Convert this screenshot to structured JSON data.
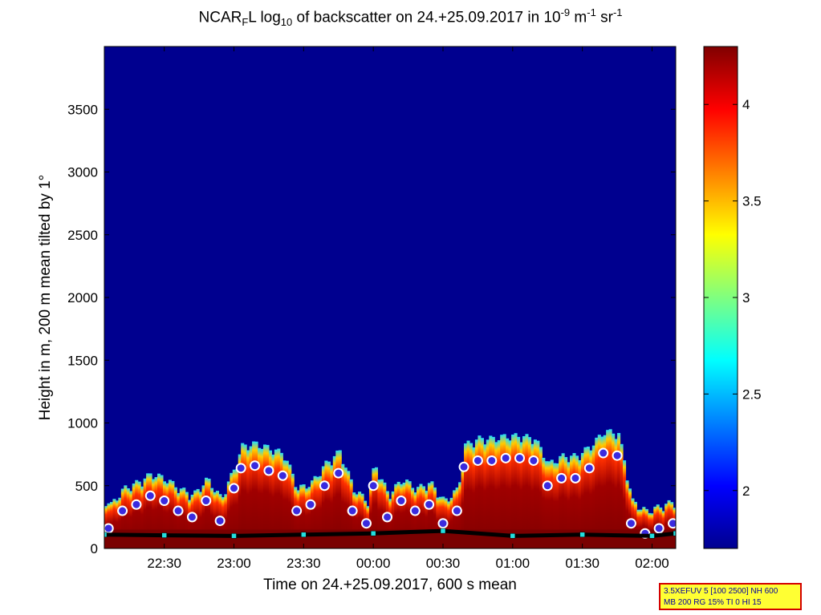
{
  "chart_data": {
    "type": "heatmap",
    "title": {
      "prefix": "NCAR",
      "sub_f": "F",
      "mid": "L log",
      "sub_10": "10",
      "rest": " of backscatter on 24.+25.09.2017 in 10",
      "sup_9": "-9",
      "unit_m": " m",
      "sup_m": "-1",
      "unit_sr": " sr",
      "sup_sr": "-1"
    },
    "xlabel": "Time on 24.+25.09.2017, 600 s mean",
    "ylabel": "Height in m, 200 m mean tilted by 1°",
    "x_ticks": [
      "22:30",
      "23:00",
      "23:30",
      "00:00",
      "00:30",
      "01:00",
      "01:30",
      "02:00"
    ],
    "x_tick_hours": [
      22.5,
      23.0,
      23.5,
      24.0,
      24.5,
      25.0,
      25.5,
      26.0
    ],
    "xlim_hours": [
      22.07,
      26.17
    ],
    "y_ticks": [
      0,
      500,
      1000,
      1500,
      2000,
      2500,
      3000,
      3500
    ],
    "ylim": [
      0,
      4000
    ],
    "colorbar": {
      "ticks": [
        2,
        2.5,
        3,
        3.5,
        4
      ],
      "range": [
        1.7,
        4.3
      ],
      "colormap": "jet"
    },
    "background_color": "#00008f",
    "series": {
      "cloud_base_heights": [
        {
          "t": 22.1,
          "h": 160
        },
        {
          "t": 22.2,
          "h": 300
        },
        {
          "t": 22.3,
          "h": 350
        },
        {
          "t": 22.4,
          "h": 420
        },
        {
          "t": 22.5,
          "h": 380
        },
        {
          "t": 22.6,
          "h": 300
        },
        {
          "t": 22.7,
          "h": 250
        },
        {
          "t": 22.8,
          "h": 380
        },
        {
          "t": 22.9,
          "h": 220
        },
        {
          "t": 23.0,
          "h": 480
        },
        {
          "t": 23.05,
          "h": 640
        },
        {
          "t": 23.15,
          "h": 660
        },
        {
          "t": 23.25,
          "h": 620
        },
        {
          "t": 23.35,
          "h": 580
        },
        {
          "t": 23.45,
          "h": 300
        },
        {
          "t": 23.55,
          "h": 350
        },
        {
          "t": 23.65,
          "h": 500
        },
        {
          "t": 23.75,
          "h": 600
        },
        {
          "t": 23.85,
          "h": 300
        },
        {
          "t": 23.95,
          "h": 200
        },
        {
          "t": 24.0,
          "h": 500
        },
        {
          "t": 24.1,
          "h": 250
        },
        {
          "t": 24.2,
          "h": 380
        },
        {
          "t": 24.3,
          "h": 300
        },
        {
          "t": 24.4,
          "h": 350
        },
        {
          "t": 24.5,
          "h": 200
        },
        {
          "t": 24.6,
          "h": 300
        },
        {
          "t": 24.65,
          "h": 650
        },
        {
          "t": 24.75,
          "h": 700
        },
        {
          "t": 24.85,
          "h": 700
        },
        {
          "t": 24.95,
          "h": 720
        },
        {
          "t": 25.05,
          "h": 720
        },
        {
          "t": 25.15,
          "h": 700
        },
        {
          "t": 25.25,
          "h": 500
        },
        {
          "t": 25.35,
          "h": 560
        },
        {
          "t": 25.45,
          "h": 560
        },
        {
          "t": 25.55,
          "h": 640
        },
        {
          "t": 25.65,
          "h": 760
        },
        {
          "t": 25.75,
          "h": 740
        },
        {
          "t": 25.85,
          "h": 200
        },
        {
          "t": 25.95,
          "h": 120
        },
        {
          "t": 26.05,
          "h": 160
        },
        {
          "t": 26.15,
          "h": 200
        }
      ],
      "mixing_layer_height": [
        {
          "t": 22.07,
          "h": 110
        },
        {
          "t": 22.5,
          "h": 105
        },
        {
          "t": 23.0,
          "h": 100
        },
        {
          "t": 23.5,
          "h": 110
        },
        {
          "t": 24.0,
          "h": 120
        },
        {
          "t": 24.5,
          "h": 140
        },
        {
          "t": 25.0,
          "h": 100
        },
        {
          "t": 25.5,
          "h": 110
        },
        {
          "t": 26.0,
          "h": 100
        },
        {
          "t": 26.17,
          "h": 120
        }
      ]
    }
  },
  "info_box": {
    "line1": "3.5XEFUV 5 [100 2500] NH 600",
    "line2": "MB 200 RG 15% TI 0 HI 15"
  }
}
